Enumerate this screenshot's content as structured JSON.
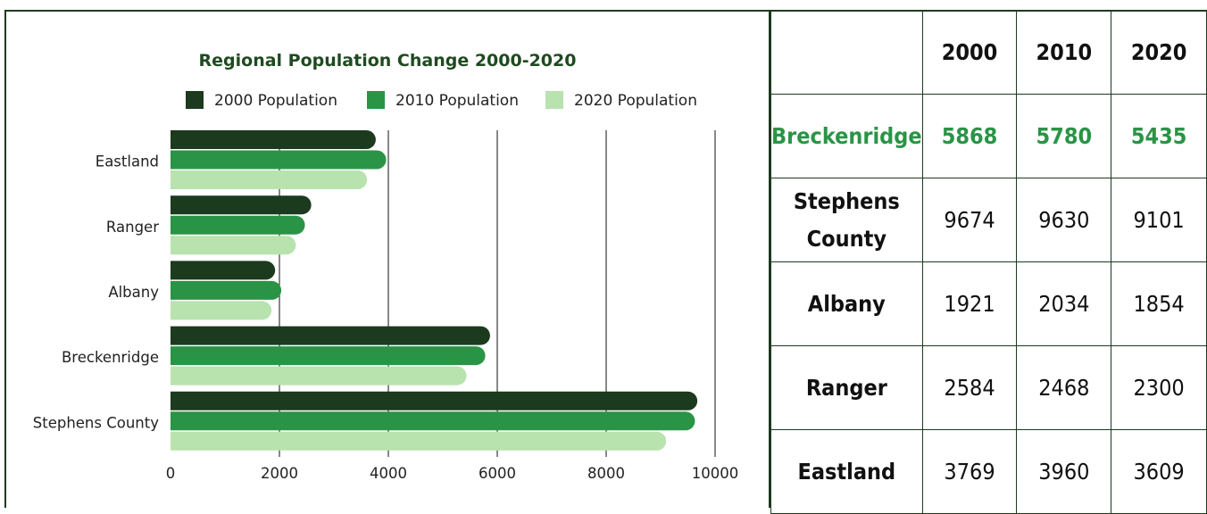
{
  "chart_data": {
    "type": "bar",
    "orientation": "horizontal",
    "title": "Regional Population Change 2000-2020",
    "categories": [
      "Eastland",
      "Ranger",
      "Albany",
      "Breckenridge",
      "Stephens County"
    ],
    "series": [
      {
        "name": "2000 Population",
        "color": "#1c3a1e",
        "values": [
          3769,
          2584,
          1921,
          5868,
          9674
        ]
      },
      {
        "name": "2010 Population",
        "color": "#2a9446",
        "values": [
          3960,
          2468,
          2034,
          5780,
          9630
        ]
      },
      {
        "name": "2020 Population",
        "color": "#b8e2ae",
        "values": [
          3609,
          2300,
          1854,
          5435,
          9101
        ]
      }
    ],
    "xlim": [
      0,
      10000
    ],
    "xticks": [
      0,
      2000,
      4000,
      6000,
      8000,
      10000
    ],
    "xlabel": "",
    "ylabel": "",
    "grid": "vertical",
    "legend": "top",
    "title_color": "#1f4a20"
  },
  "table": {
    "columns": [
      "",
      "2000",
      "2010",
      "2020"
    ],
    "rows": [
      {
        "name": "Breckenridge",
        "values": [
          "5868",
          "5780",
          "5435"
        ],
        "highlight": true
      },
      {
        "name": "Stephens County",
        "values": [
          "9674",
          "9630",
          "9101"
        ],
        "highlight": false
      },
      {
        "name": "Albany",
        "values": [
          "1921",
          "2034",
          "1854"
        ],
        "highlight": false
      },
      {
        "name": "Ranger",
        "values": [
          "2584",
          "2468",
          "2300"
        ],
        "highlight": false
      },
      {
        "name": "Eastland",
        "values": [
          "3769",
          "3960",
          "3609"
        ],
        "highlight": false
      }
    ],
    "highlight_color": "#2a9446"
  }
}
